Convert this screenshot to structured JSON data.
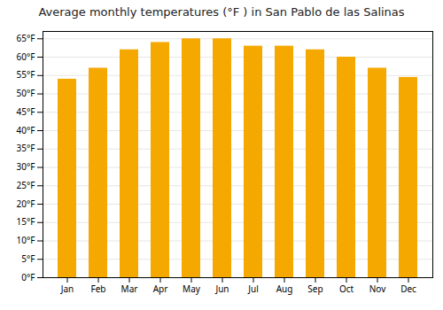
{
  "chart_data": {
    "type": "bar",
    "title": "Average monthly temperatures (°F ) in San Pablo de las Salinas",
    "categories": [
      "Jan",
      "Feb",
      "Mar",
      "Apr",
      "May",
      "Jun",
      "Jul",
      "Aug",
      "Sep",
      "Oct",
      "Nov",
      "Dec"
    ],
    "values": [
      54,
      57,
      62,
      64,
      65,
      65,
      63,
      63,
      62,
      60,
      57,
      54.5
    ],
    "color": "#F5A800",
    "ylim": [
      0,
      67
    ],
    "yticks": [
      {
        "value": 0,
        "label": "0°F"
      },
      {
        "value": 5,
        "label": "5°F"
      },
      {
        "value": 10,
        "label": "10°F"
      },
      {
        "value": 15,
        "label": "15°F"
      },
      {
        "value": 20,
        "label": "20°F"
      },
      {
        "value": 25,
        "label": "25°F"
      },
      {
        "value": 30,
        "label": "30°F"
      },
      {
        "value": 35,
        "label": "35°F"
      },
      {
        "value": 40,
        "label": "40°F"
      },
      {
        "value": 45,
        "label": "45°F"
      },
      {
        "value": 50,
        "label": "50°F"
      },
      {
        "value": 55,
        "label": "55°F"
      },
      {
        "value": 60,
        "label": "60°F"
      },
      {
        "value": 65,
        "label": "65°F"
      }
    ],
    "grid": true
  }
}
